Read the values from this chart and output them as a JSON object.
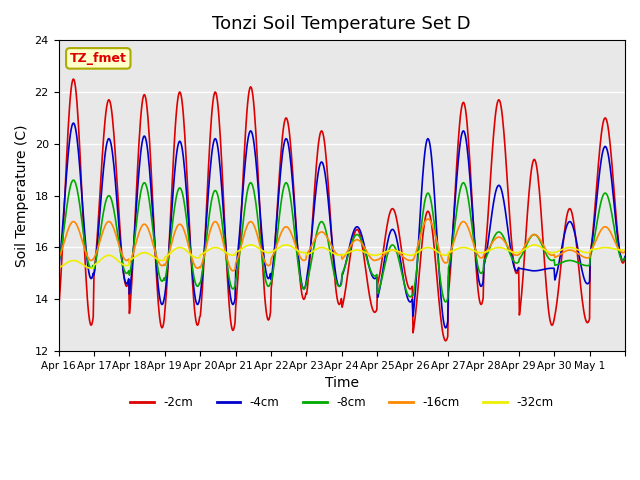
{
  "title": "Tonzi Soil Temperature Set D",
  "xlabel": "Time",
  "ylabel": "Soil Temperature (C)",
  "ylim": [
    12,
    24
  ],
  "yticks": [
    12,
    14,
    16,
    18,
    20,
    22,
    24
  ],
  "x_labels": [
    "Apr 16",
    "Apr 17",
    "Apr 18",
    "Apr 19",
    "Apr 20",
    "Apr 21",
    "Apr 22",
    "Apr 23",
    "Apr 24",
    "Apr 25",
    "Apr 26",
    "Apr 27",
    "Apr 28",
    "Apr 29",
    "Apr 30",
    "May 1",
    ""
  ],
  "n_days": 16,
  "pts_per_day": 48,
  "legend_labels": [
    "-2cm",
    "-4cm",
    "-8cm",
    "-16cm",
    "-32cm"
  ],
  "legend_colors": [
    "#dd0000",
    "#0000cc",
    "#00aa00",
    "#ff8800",
    "#eeee00"
  ],
  "annotation_text": "TZ_fmet",
  "annotation_color": "#dd0000",
  "annotation_bg": "#ffffcc",
  "annotation_border": "#aaaa00",
  "bg_color": "#e8e8e8",
  "title_fontsize": 13,
  "label_fontsize": 10,
  "peak_2cm": [
    22.5,
    21.7,
    21.9,
    22.0,
    22.0,
    22.2,
    21.0,
    20.5,
    16.7,
    17.5,
    17.4,
    21.6,
    21.7,
    19.4,
    17.5,
    21.0
  ],
  "trough_2cm": [
    13.0,
    14.5,
    12.9,
    13.0,
    12.8,
    13.2,
    14.0,
    13.8,
    13.5,
    14.4,
    12.4,
    13.8,
    15.0,
    13.0,
    13.1,
    15.4
  ],
  "peak_4cm": [
    20.8,
    20.2,
    20.3,
    20.1,
    20.2,
    20.5,
    20.2,
    19.3,
    16.8,
    16.7,
    20.2,
    20.5,
    18.4,
    15.1,
    17.0,
    19.9
  ],
  "trough_4cm": [
    14.8,
    14.6,
    13.8,
    13.8,
    13.8,
    14.8,
    14.4,
    14.5,
    14.8,
    13.9,
    12.9,
    14.5,
    15.1,
    15.2,
    14.6,
    15.5
  ],
  "peak_8cm": [
    18.6,
    18.0,
    18.5,
    18.3,
    18.2,
    18.5,
    18.5,
    17.0,
    16.5,
    16.1,
    18.1,
    18.5,
    16.6,
    16.5,
    15.5,
    18.1
  ],
  "trough_8cm": [
    15.2,
    15.0,
    14.7,
    14.5,
    14.4,
    14.5,
    14.4,
    14.5,
    14.9,
    14.1,
    13.9,
    15.0,
    15.4,
    15.5,
    15.3,
    15.5
  ],
  "peak_16cm": [
    17.0,
    17.0,
    16.9,
    16.9,
    17.0,
    17.0,
    16.8,
    16.6,
    16.3,
    15.9,
    17.1,
    17.0,
    16.4,
    16.5,
    15.9,
    16.8
  ],
  "trough_16cm": [
    15.5,
    15.5,
    15.3,
    15.2,
    15.1,
    15.3,
    15.5,
    15.7,
    15.5,
    15.5,
    15.4,
    15.6,
    15.7,
    15.7,
    15.6,
    15.8
  ],
  "peak_32cm": [
    15.5,
    15.7,
    15.8,
    16.0,
    16.0,
    16.1,
    16.1,
    16.0,
    15.9,
    15.9,
    16.0,
    16.0,
    16.0,
    16.1,
    16.0,
    16.0
  ],
  "trough_32cm": [
    15.2,
    15.3,
    15.5,
    15.6,
    15.7,
    15.8,
    15.8,
    15.7,
    15.7,
    15.7,
    15.7,
    15.8,
    15.8,
    15.8,
    15.8,
    15.9
  ]
}
